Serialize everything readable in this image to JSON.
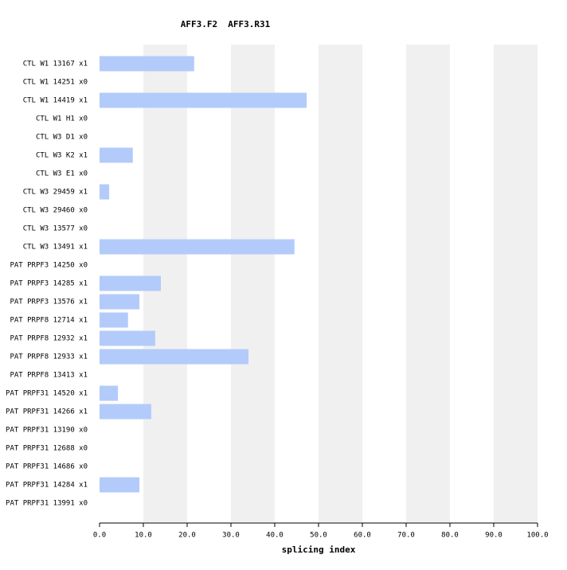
{
  "chart_data": {
    "type": "bar",
    "orientation": "horizontal",
    "title": "AFF3.F2  AFF3.R31",
    "xlabel": "splicing index",
    "categories": [
      "CTL W1 13167 x1",
      "CTL W1 14251 x0",
      "CTL W1 14419 x1",
      "CTL W1 H1 x0",
      "CTL W3 D1 x0",
      "CTL W3 K2 x1",
      "CTL W3 E1 x0",
      "CTL W3 29459 x1",
      "CTL W3 29460 x0",
      "CTL W3 13577 x0",
      "CTL W3 13491 x1",
      "PAT PRPF3 14250 x0",
      "PAT PRPF3 14285 x1",
      "PAT PRPF3 13576 x1",
      "PAT PRPF8 12714 x1",
      "PAT PRPF8 12932 x1",
      "PAT PRPF8 12933 x1",
      "PAT PRPF8 13413 x1",
      "PAT PRPF31 14520 x1",
      "PAT PRPF31 14266 x1",
      "PAT PRPF31 13190 x0",
      "PAT PRPF31 12688 x0",
      "PAT PRPF31 14686 x0",
      "PAT PRPF31 14284 x1",
      "PAT PRPF31 13991 x0"
    ],
    "values": [
      21.6,
      null,
      47.3,
      null,
      null,
      7.6,
      null,
      2.2,
      null,
      null,
      44.5,
      null,
      14.0,
      9.1,
      6.5,
      12.7,
      34.0,
      0,
      4.2,
      11.8,
      null,
      null,
      null,
      9.1,
      null
    ],
    "color": "#b3cbfa",
    "band_color": "#f0f0f0",
    "xlim": [
      0,
      100
    ],
    "xticks": [
      {
        "value": 0,
        "label": "0.0"
      },
      {
        "value": 10,
        "label": "10.0"
      },
      {
        "value": 20,
        "label": "20.0"
      },
      {
        "value": 30,
        "label": "30.0"
      },
      {
        "value": 40,
        "label": "40.0"
      },
      {
        "value": 50,
        "label": "50.0"
      },
      {
        "value": 60,
        "label": "60.0"
      },
      {
        "value": 70,
        "label": "70.0"
      },
      {
        "value": 80,
        "label": "80.0"
      },
      {
        "value": 90,
        "label": "90.0"
      },
      {
        "value": 100,
        "label": "100.0"
      }
    ]
  }
}
